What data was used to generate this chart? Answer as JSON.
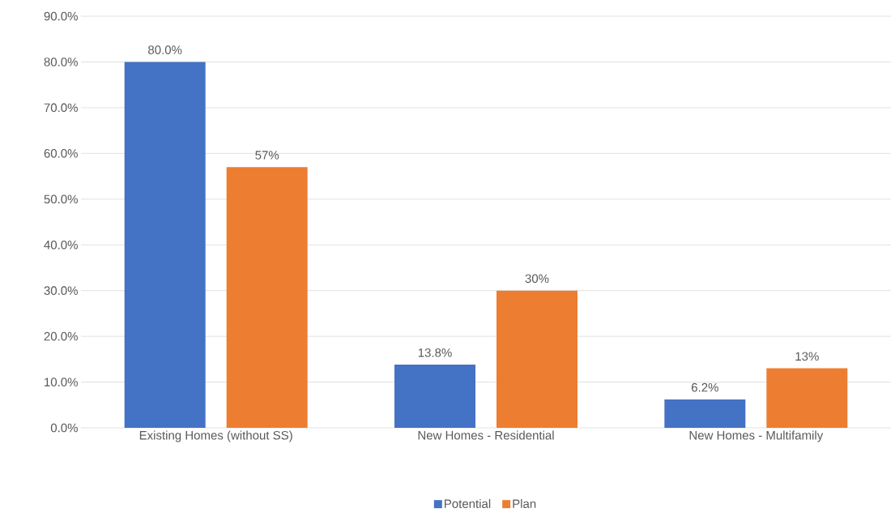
{
  "chart_data": {
    "type": "bar",
    "categories": [
      "Existing Homes (without SS)",
      "New Homes - Residential",
      "New Homes - Multifamily"
    ],
    "series": [
      {
        "name": "Potential",
        "color": "#4472c4",
        "values": [
          80.0,
          13.8,
          6.2
        ],
        "value_labels": [
          "80.0%",
          "13.8%",
          "6.2%"
        ]
      },
      {
        "name": "Plan",
        "color": "#ed7d31",
        "values": [
          57,
          30,
          13
        ],
        "value_labels": [
          "57%",
          "30%",
          "13%"
        ]
      }
    ],
    "ylim": [
      0,
      90
    ],
    "yticks": [
      {
        "value": 0,
        "label": "0.0%"
      },
      {
        "value": 10,
        "label": "10.0%"
      },
      {
        "value": 20,
        "label": "20.0%"
      },
      {
        "value": 30,
        "label": "30.0%"
      },
      {
        "value": 40,
        "label": "40.0%"
      },
      {
        "value": 50,
        "label": "50.0%"
      },
      {
        "value": 60,
        "label": "60.0%"
      },
      {
        "value": 70,
        "label": "70.0%"
      },
      {
        "value": 80,
        "label": "80.0%"
      },
      {
        "value": 90,
        "label": "90.0%"
      }
    ],
    "grid": "y",
    "legend": "bottom"
  }
}
